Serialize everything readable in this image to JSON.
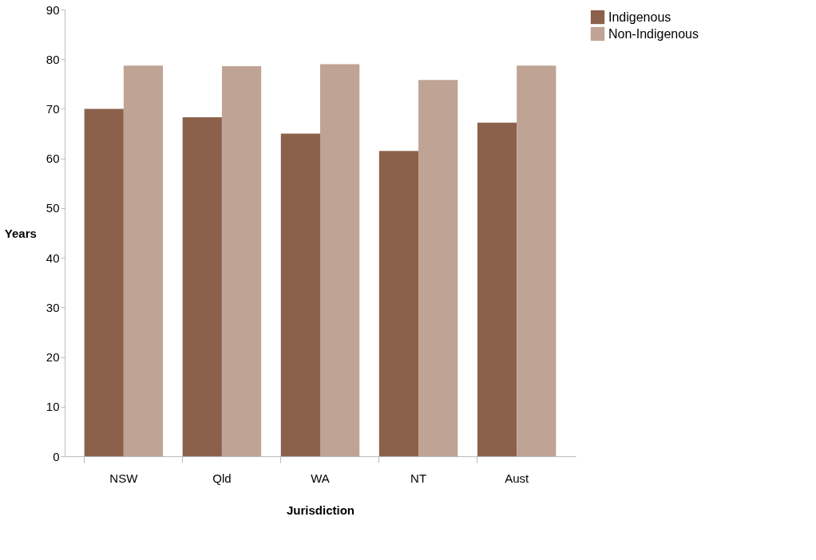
{
  "chart_data": {
    "type": "bar",
    "xlabel": "Jurisdiction",
    "ylabel": "Years",
    "categories": [
      "NSW",
      "Qld",
      "WA",
      "NT",
      "Aust"
    ],
    "series": [
      {
        "name": "Indigenous",
        "color": "#8b614c",
        "values": [
          70.0,
          68.3,
          65.0,
          61.5,
          67.2
        ]
      },
      {
        "name": "Non-Indigenous",
        "color": "#bfa394",
        "values": [
          78.7,
          78.6,
          79.0,
          75.8,
          78.7
        ]
      }
    ],
    "ylim": [
      0,
      90
    ],
    "yticks": [
      0,
      10,
      20,
      30,
      40,
      50,
      60,
      70,
      80,
      90
    ],
    "grid": false,
    "legend": "right"
  }
}
